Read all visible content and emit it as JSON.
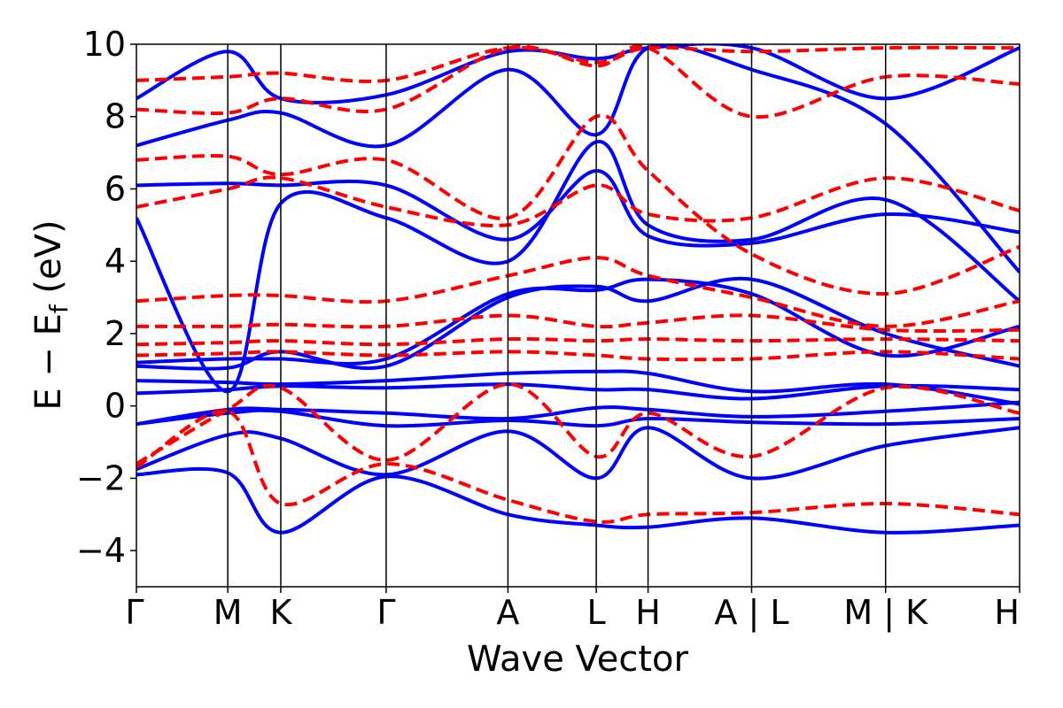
{
  "chart_data": {
    "type": "line",
    "title": "",
    "xlabel": "Wave Vector",
    "ylabel_main": "E − E",
    "ylabel_sub": "f",
    "ylabel_unit": " (eV)",
    "ylim": [
      -5,
      10
    ],
    "yticks": [
      {
        "value": -4,
        "label": "−4"
      },
      {
        "value": -2,
        "label": "−2"
      },
      {
        "value": 0,
        "label": "0"
      },
      {
        "value": 2,
        "label": "2"
      },
      {
        "value": 4,
        "label": "4"
      },
      {
        "value": 6,
        "label": "6"
      },
      {
        "value": 8,
        "label": "8"
      },
      {
        "value": 10,
        "label": "10"
      }
    ],
    "kpath": [
      {
        "k": 0,
        "label": "Γ"
      },
      {
        "k": 0.15,
        "label": "M"
      },
      {
        "k": 0.237,
        "label": "K"
      },
      {
        "k": 0.41,
        "label": "Γ"
      },
      {
        "k": 0.61,
        "label": "A"
      },
      {
        "k": 0.755,
        "label": "L"
      },
      {
        "k": 0.84,
        "label": "H"
      },
      {
        "k": 1.01,
        "label": "A | L"
      },
      {
        "k": 1.23,
        "label": "M | K"
      },
      {
        "k": 1.45,
        "label": "H"
      }
    ],
    "xlim": [
      0,
      1.45
    ],
    "series": [
      {
        "style": "solid",
        "color": "#0000ff",
        "bands": [
          {
            "k": [
              0,
              0.15,
              0.237,
              0.41,
              0.61,
              0.755,
              0.84,
              1.01,
              1.23,
              1.45
            ],
            "e": [
              -1.9,
              -1.85,
              -3.5,
              -1.95,
              -3.0,
              -3.3,
              -3.35,
              -3.1,
              -3.5,
              -3.3
            ]
          },
          {
            "k": [
              0,
              0.15,
              0.237,
              0.41,
              0.61,
              0.755,
              0.84,
              1.01,
              1.23,
              1.45
            ],
            "e": [
              -1.75,
              -0.8,
              -0.9,
              -1.9,
              -0.7,
              -2.0,
              -0.6,
              -2.0,
              -1.1,
              -0.6
            ]
          },
          {
            "k": [
              0,
              0.15,
              0.237,
              0.41,
              0.61,
              0.755,
              0.84,
              1.01,
              1.23,
              1.45
            ],
            "e": [
              -0.5,
              -0.2,
              -0.15,
              -0.55,
              -0.4,
              -0.55,
              -0.35,
              -0.45,
              -0.5,
              -0.35
            ]
          },
          {
            "k": [
              0,
              0.15,
              0.237,
              0.41,
              0.61,
              0.755,
              0.84,
              1.01,
              1.23,
              1.45
            ],
            "e": [
              -0.5,
              -0.1,
              -0.1,
              -0.2,
              -0.35,
              -0.05,
              -0.1,
              -0.3,
              -0.15,
              0.1
            ]
          },
          {
            "k": [
              0,
              0.15,
              0.237,
              0.41,
              0.61,
              0.755,
              0.84,
              1.01,
              1.23,
              1.45
            ],
            "e": [
              0.35,
              0.45,
              0.55,
              0.5,
              0.6,
              0.45,
              0.45,
              0.2,
              0.55,
              0.45
            ]
          },
          {
            "k": [
              0,
              0.15,
              0.237,
              0.41,
              0.61,
              0.755,
              0.84,
              1.01,
              1.23,
              1.45
            ],
            "e": [
              0.7,
              0.65,
              0.6,
              0.7,
              0.9,
              0.95,
              0.9,
              0.4,
              0.6,
              0.05
            ]
          },
          {
            "k": [
              0,
              0.15,
              0.237,
              0.41,
              0.61,
              0.755,
              0.84,
              1.01,
              1.23,
              1.45
            ],
            "e": [
              1.1,
              1.05,
              1.5,
              1.1,
              3.0,
              3.3,
              2.9,
              3.5,
              2.0,
              1.1
            ]
          },
          {
            "k": [
              0,
              0.15,
              0.237,
              0.41,
              0.61,
              0.755,
              0.84,
              1.01,
              1.23,
              1.45
            ],
            "e": [
              1.2,
              1.3,
              1.3,
              1.3,
              3.1,
              3.2,
              3.5,
              3.1,
              1.4,
              2.2
            ]
          },
          {
            "k": [
              0,
              0.15,
              0.237,
              0.41,
              0.61,
              0.755,
              0.84,
              1.01,
              1.23,
              1.45
            ],
            "e": [
              5.2,
              0.4,
              5.6,
              5.2,
              4.0,
              7.3,
              5.0,
              4.6,
              5.7,
              2.9
            ]
          },
          {
            "k": [
              0,
              0.15,
              0.237,
              0.41,
              0.61,
              0.755,
              0.84,
              1.01,
              1.23,
              1.45
            ],
            "e": [
              6.1,
              6.15,
              6.1,
              6.1,
              4.6,
              6.5,
              4.7,
              4.5,
              5.3,
              4.8
            ]
          },
          {
            "k": [
              0,
              0.15,
              0.237,
              0.41,
              0.61,
              0.755,
              0.84,
              1.01,
              1.23,
              1.45
            ],
            "e": [
              7.2,
              7.9,
              8.1,
              7.2,
              9.3,
              7.5,
              9.9,
              9.3,
              7.8,
              3.7
            ]
          },
          {
            "k": [
              0,
              0.15,
              0.237,
              0.41,
              0.61,
              0.755,
              0.84,
              1.01,
              1.23,
              1.45
            ],
            "e": [
              8.5,
              9.8,
              8.5,
              8.6,
              9.8,
              9.6,
              9.9,
              9.9,
              8.5,
              9.9
            ]
          }
        ]
      },
      {
        "style": "dashed",
        "color": "#ff0000",
        "bands": [
          {
            "k": [
              0,
              0.15,
              0.237,
              0.41,
              0.61,
              0.755,
              0.84,
              1.01,
              1.23,
              1.45
            ],
            "e": [
              -1.7,
              -0.15,
              -2.7,
              -1.6,
              -2.6,
              -3.2,
              -3.0,
              -2.95,
              -2.7,
              -3.0
            ]
          },
          {
            "k": [
              0,
              0.15,
              0.237,
              0.41,
              0.61,
              0.755,
              0.84,
              1.01,
              1.23,
              1.45
            ],
            "e": [
              -1.6,
              -0.1,
              0.5,
              -1.5,
              0.6,
              -1.4,
              -0.2,
              -1.4,
              0.5,
              -0.2
            ]
          },
          {
            "k": [
              0,
              0.15,
              0.237,
              0.41,
              0.61,
              0.755,
              0.84,
              1.01,
              1.23,
              1.45
            ],
            "e": [
              1.4,
              1.45,
              1.5,
              1.4,
              1.5,
              1.4,
              1.3,
              1.3,
              1.5,
              1.3
            ]
          },
          {
            "k": [
              0,
              0.15,
              0.237,
              0.41,
              0.61,
              0.755,
              0.84,
              1.01,
              1.23,
              1.45
            ],
            "e": [
              1.7,
              1.75,
              1.8,
              1.7,
              1.85,
              1.8,
              1.85,
              1.8,
              1.85,
              1.8
            ]
          },
          {
            "k": [
              0,
              0.15,
              0.237,
              0.41,
              0.61,
              0.755,
              0.84,
              1.01,
              1.23,
              1.45
            ],
            "e": [
              2.2,
              2.2,
              2.25,
              2.2,
              2.5,
              2.2,
              2.3,
              2.5,
              2.1,
              2.1
            ]
          },
          {
            "k": [
              0,
              0.15,
              0.237,
              0.41,
              0.61,
              0.755,
              0.84,
              1.01,
              1.23,
              1.45
            ],
            "e": [
              2.9,
              3.05,
              3.05,
              2.9,
              3.6,
              4.1,
              3.6,
              3.0,
              2.2,
              2.9
            ]
          },
          {
            "k": [
              0,
              0.15,
              0.237,
              0.41,
              0.61,
              0.755,
              0.84,
              1.01,
              1.23,
              1.45
            ],
            "e": [
              5.5,
              6.0,
              6.3,
              5.5,
              5.0,
              6.1,
              5.3,
              5.2,
              6.3,
              5.4
            ]
          },
          {
            "k": [
              0,
              0.15,
              0.237,
              0.41,
              0.61,
              0.755,
              0.84,
              1.01,
              1.23,
              1.45
            ],
            "e": [
              6.8,
              6.9,
              6.4,
              6.8,
              5.2,
              8.0,
              6.5,
              4.2,
              3.1,
              4.4
            ]
          },
          {
            "k": [
              0,
              0.15,
              0.237,
              0.41,
              0.61,
              0.755,
              0.84,
              1.01,
              1.23,
              1.45
            ],
            "e": [
              8.2,
              8.1,
              8.5,
              8.2,
              9.9,
              9.4,
              9.9,
              8.0,
              9.1,
              8.9
            ]
          },
          {
            "k": [
              0,
              0.15,
              0.237,
              0.41,
              0.61,
              0.755,
              0.84,
              1.01,
              1.23,
              1.45
            ],
            "e": [
              9.0,
              9.1,
              9.2,
              9.0,
              9.9,
              9.5,
              9.9,
              9.8,
              9.9,
              9.9
            ]
          }
        ]
      }
    ]
  }
}
